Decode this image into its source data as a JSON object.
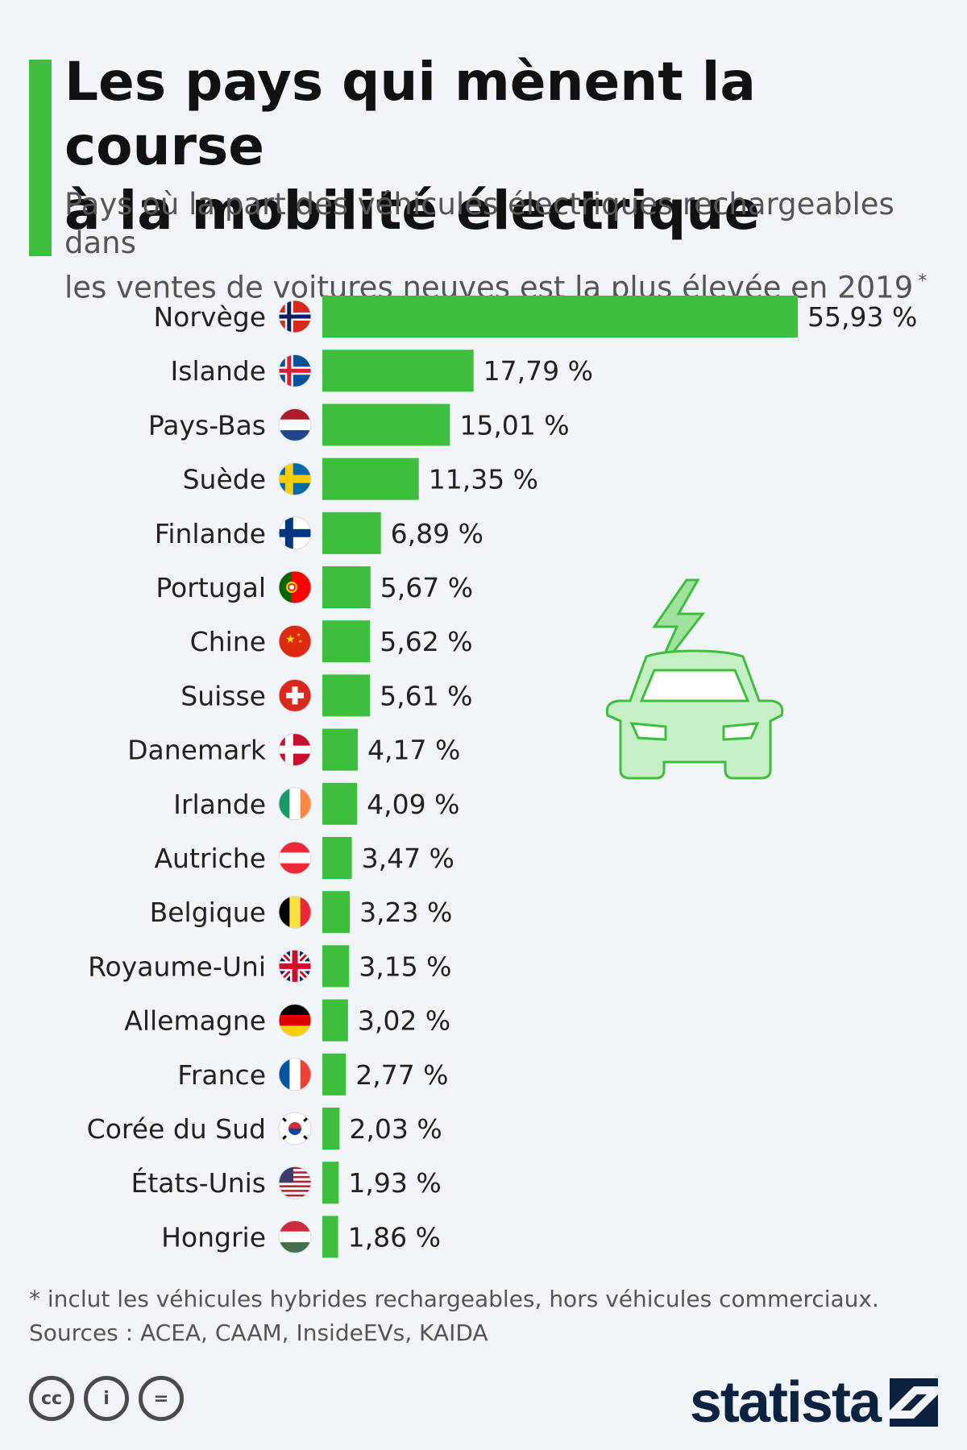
{
  "header": {
    "title_line1": "Les pays qui mènent la course",
    "title_line2": "à la mobilité électrique",
    "subtitle_line1": "Pays où la part des véhicules électriques rechargeables dans",
    "subtitle_line2": "les ventes de voitures neuves est la plus élevée en 2019",
    "subtitle_asterisk": "*"
  },
  "chart_data": {
    "type": "bar",
    "orientation": "horizontal",
    "categories": [
      "Norvège",
      "Islande",
      "Pays-Bas",
      "Suède",
      "Finlande",
      "Portugal",
      "Chine",
      "Suisse",
      "Danemark",
      "Irlande",
      "Autriche",
      "Belgique",
      "Royaume-Uni",
      "Allemagne",
      "France",
      "Corée du Sud",
      "États-Unis",
      "Hongrie"
    ],
    "values": [
      55.93,
      17.79,
      15.01,
      11.35,
      6.89,
      5.67,
      5.62,
      5.61,
      4.17,
      4.09,
      3.47,
      3.23,
      3.15,
      3.02,
      2.77,
      2.03,
      1.93,
      1.86
    ],
    "value_labels": [
      "55,93 %",
      "17,79 %",
      "15,01 %",
      "11,35 %",
      "6,89 %",
      "5,67 %",
      "5,62 %",
      "5,61 %",
      "4,17 %",
      "4,09 %",
      "3,47 %",
      "3,23 %",
      "3,15 %",
      "3,02 %",
      "2,77 %",
      "2,03 %",
      "1,93 %",
      "1,86 %"
    ],
    "flag_icons": [
      "norway-flag-icon",
      "iceland-flag-icon",
      "netherlands-flag-icon",
      "sweden-flag-icon",
      "finland-flag-icon",
      "portugal-flag-icon",
      "china-flag-icon",
      "switzerland-flag-icon",
      "denmark-flag-icon",
      "ireland-flag-icon",
      "austria-flag-icon",
      "belgium-flag-icon",
      "uk-flag-icon",
      "germany-flag-icon",
      "france-flag-icon",
      "south-korea-flag-icon",
      "usa-flag-icon",
      "hungary-flag-icon"
    ],
    "bar_color": "#3dbf3d",
    "grid": false
  },
  "illustration": {
    "icon": "electric-car-icon",
    "color": "#3dbf3d"
  },
  "footer": {
    "note": "* inclut les véhicules hybrides rechargeables, hors véhicules commerciaux.",
    "sources": "Sources : ACEA, CAAM, InsideEVs, KAIDA",
    "license_icons": [
      "cc",
      "i",
      "="
    ],
    "logo_text": "statista"
  },
  "colors": {
    "accent": "#3dbf3d",
    "background": "#f1f5f9",
    "logo": "#0b2341"
  }
}
